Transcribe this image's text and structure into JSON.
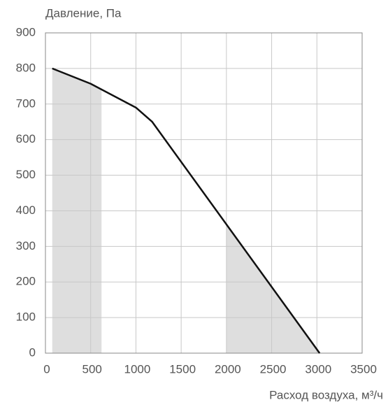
{
  "chart_data": {
    "type": "line",
    "ylabel": "Давление, Па",
    "xlabel": "Расход воздуха, м³/ч",
    "x": [
      75,
      500,
      1000,
      1180,
      3030
    ],
    "values": [
      800,
      757,
      690,
      650,
      0
    ],
    "color": "#111111",
    "shaded_ranges": [
      [
        75,
        620
      ],
      [
        2000,
        3030
      ]
    ],
    "shade_color": "#dedede",
    "xlim": [
      0,
      3500
    ],
    "xticks": [
      0,
      500,
      1000,
      1500,
      2000,
      2500,
      3000,
      3500
    ],
    "ylim": [
      0,
      900
    ],
    "yticks": [
      0,
      100,
      200,
      300,
      400,
      500,
      600,
      700,
      800,
      900
    ],
    "grid": true
  }
}
